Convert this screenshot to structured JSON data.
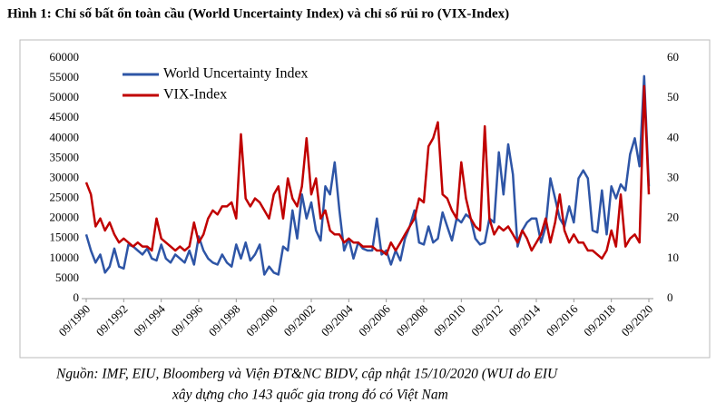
{
  "chart_data": {
    "type": "line",
    "title": "Hình 1:  Chỉ số bất ổn toàn cầu (World Uncertainty Index) và chỉ số rủi ro (VIX-Index)",
    "source": [
      "Nguồn: IMF, EIU, Bloomberg và Viện ĐT&NC BIDV, cập nhật 15/10/2020 (WUI do EIU",
      "xây dựng cho 143 quốc gia trong đó có Việt Nam"
    ],
    "categories": [
      "09/1990",
      null,
      null,
      null,
      null,
      null,
      null,
      null,
      "09/1992",
      null,
      null,
      null,
      null,
      null,
      null,
      null,
      "09/1994",
      null,
      null,
      null,
      null,
      null,
      null,
      null,
      "09/1996",
      null,
      null,
      null,
      null,
      null,
      null,
      null,
      "09/1998",
      null,
      null,
      null,
      null,
      null,
      null,
      null,
      "09/2000",
      null,
      null,
      null,
      null,
      null,
      null,
      null,
      "09/2002",
      null,
      null,
      null,
      null,
      null,
      null,
      null,
      "09/2004",
      null,
      null,
      null,
      null,
      null,
      null,
      null,
      "09/2006",
      null,
      null,
      null,
      null,
      null,
      null,
      null,
      "09/2008",
      null,
      null,
      null,
      null,
      null,
      null,
      null,
      "09/2010",
      null,
      null,
      null,
      null,
      null,
      null,
      null,
      "09/2012",
      null,
      null,
      null,
      null,
      null,
      null,
      null,
      "09/2014",
      null,
      null,
      null,
      null,
      null,
      null,
      null,
      "09/2016",
      null,
      null,
      null,
      null,
      null,
      null,
      null,
      "09/2018",
      null,
      null,
      null,
      null,
      null,
      null,
      null,
      "09/2020"
    ],
    "series": [
      {
        "name": "World Uncertainty Index",
        "color": "#2e55a6",
        "axis": "y",
        "values": [
          16000,
          12000,
          9000,
          11000,
          6500,
          8000,
          12500,
          8000,
          7500,
          13500,
          13000,
          12000,
          11000,
          12500,
          10000,
          9500,
          13500,
          10000,
          9000,
          11000,
          10000,
          9000,
          12000,
          8500,
          15500,
          12000,
          10000,
          9000,
          8500,
          11000,
          9000,
          8000,
          13500,
          10000,
          14000,
          9500,
          11000,
          13500,
          6000,
          8000,
          6500,
          6000,
          13000,
          12000,
          22000,
          15000,
          26000,
          20000,
          24000,
          17000,
          14500,
          28000,
          26000,
          34000,
          22000,
          12000,
          15000,
          10000,
          14000,
          12500,
          12000,
          12000,
          20000,
          11000,
          12000,
          8500,
          12000,
          9500,
          15000,
          18000,
          22000,
          14000,
          13500,
          18000,
          14000,
          15000,
          21500,
          18000,
          14500,
          20000,
          19000,
          21000,
          20000,
          15000,
          13500,
          14000,
          20000,
          19000,
          36500,
          26000,
          38500,
          31000,
          13000,
          17000,
          19000,
          20000,
          20000,
          14000,
          18000,
          30000,
          25000,
          20000,
          18000,
          23000,
          19000,
          30000,
          32000,
          30000,
          17000,
          16500,
          27000,
          16000,
          28000,
          25000,
          28500,
          27000,
          36000,
          40000,
          33000,
          55500,
          28000
        ]
      },
      {
        "name": "VIX-Index",
        "color": "#c00000",
        "axis": "y2",
        "values": [
          29,
          26,
          18,
          20,
          17,
          19,
          16,
          14,
          15,
          14,
          13,
          14,
          13,
          13,
          12,
          20,
          15,
          14,
          13,
          12,
          13,
          12,
          13,
          19,
          14,
          16,
          20,
          22,
          21,
          23,
          23,
          24,
          20,
          41,
          25,
          23,
          25,
          24,
          22,
          20,
          26,
          28,
          20,
          30,
          25,
          23,
          28,
          40,
          26,
          30,
          20,
          22,
          17,
          16,
          16,
          14,
          15,
          14,
          14,
          13,
          13,
          13,
          12,
          12,
          11,
          14,
          12,
          14,
          16,
          18,
          20,
          25,
          24,
          38,
          40,
          44,
          26,
          25,
          22,
          20,
          34,
          25,
          20,
          18,
          17,
          43,
          20,
          16,
          18,
          17,
          18,
          16,
          14,
          17,
          15,
          12,
          14,
          16,
          20,
          14,
          19,
          26,
          17,
          14,
          16,
          14,
          14,
          12,
          12,
          11,
          10,
          12,
          17,
          13,
          26,
          13,
          15,
          16,
          14,
          53,
          26
        ]
      }
    ],
    "ylim": [
      0,
      60000
    ],
    "yticks": [
      0,
      5000,
      10000,
      15000,
      20000,
      25000,
      30000,
      35000,
      40000,
      45000,
      50000,
      55000,
      60000
    ],
    "y2lim": [
      0,
      60
    ],
    "y2ticks": [
      0,
      10,
      20,
      30,
      40,
      50,
      60
    ],
    "legend": "upper-left"
  }
}
